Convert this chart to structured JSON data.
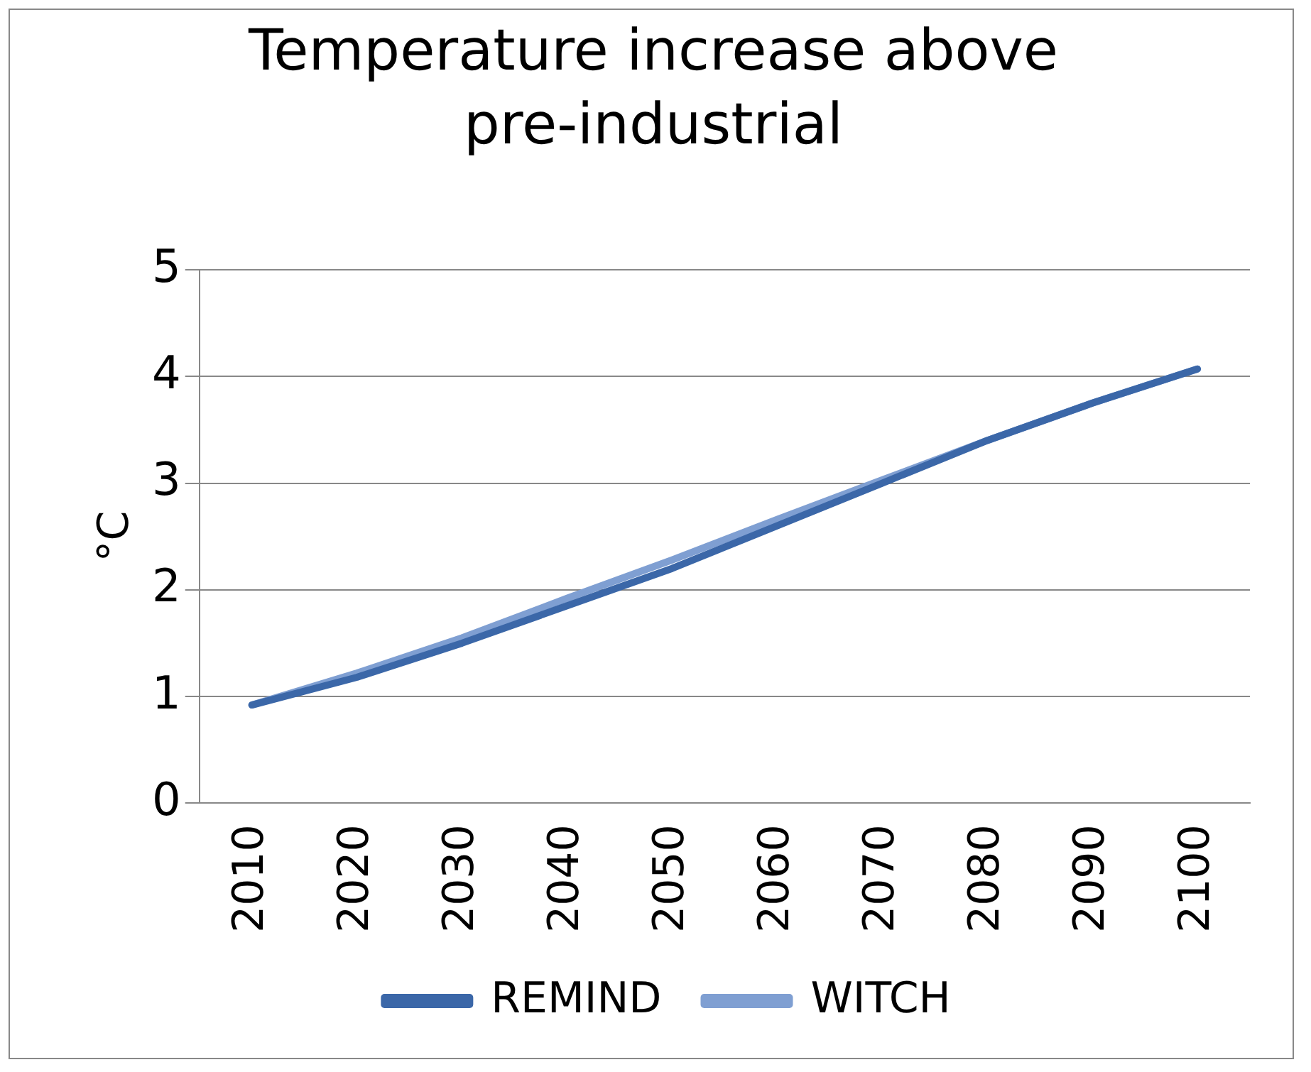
{
  "chart_data": {
    "type": "line",
    "title": "Temperature increase above pre-industrial",
    "ylabel": "°C",
    "categories": [
      "2010",
      "2020",
      "2030",
      "2040",
      "2050",
      "2060",
      "2070",
      "2080",
      "2090",
      "2100"
    ],
    "series": [
      {
        "name": "REMIND",
        "color": "#3b67a8",
        "values": [
          0.92,
          1.18,
          1.5,
          1.85,
          2.2,
          2.6,
          3.0,
          3.4,
          3.75,
          4.07
        ]
      },
      {
        "name": "WITCH",
        "color": "#7f9fd2",
        "values": [
          0.92,
          1.22,
          1.55,
          1.92,
          2.28,
          2.66,
          3.03,
          3.4,
          3.75,
          4.07
        ]
      }
    ],
    "ylim": [
      0,
      5
    ],
    "yticks": [
      0,
      1,
      2,
      3,
      4,
      5
    ],
    "grid": "y",
    "legend": "bottom",
    "marker": "none",
    "line_style": "solid"
  }
}
